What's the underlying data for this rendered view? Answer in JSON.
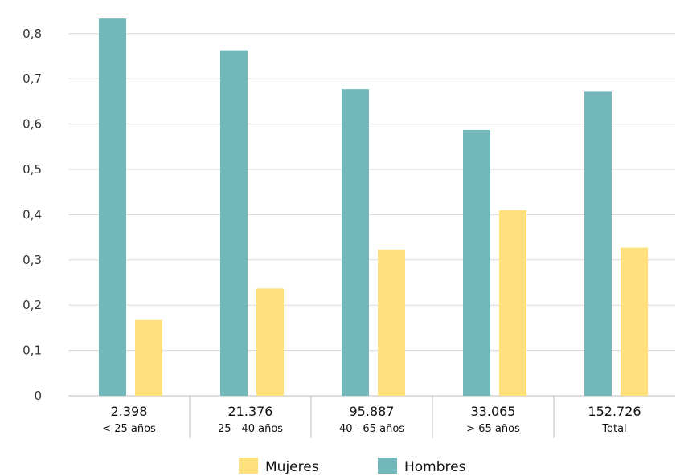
{
  "chart_data": {
    "type": "bar",
    "title": "",
    "xlabel": "",
    "ylabel": "",
    "ylim": [
      0,
      0.85
    ],
    "yticks": [
      "0",
      "0,1",
      "0,2",
      "0,3",
      "0,4",
      "0,5",
      "0,6",
      "0,7",
      "0,8"
    ],
    "ytick_values": [
      0,
      0.1,
      0.2,
      0.3,
      0.4,
      0.5,
      0.6,
      0.7,
      0.8
    ],
    "grid": true,
    "legend_position": "bottom",
    "categories": [
      {
        "count": "2.398",
        "label": "< 25 años"
      },
      {
        "count": "21.376",
        "label": "25 - 40 años"
      },
      {
        "count": "95.887",
        "label": "40 - 65 años"
      },
      {
        "count": "33.065",
        "label": "> 65 años"
      },
      {
        "count": "152.726",
        "label": "Total"
      }
    ],
    "series": [
      {
        "name": "Hombres",
        "color": "#72b8bb",
        "values": [
          0.833,
          0.763,
          0.677,
          0.587,
          0.673
        ]
      },
      {
        "name": "Mujeres",
        "color": "#ffe07d",
        "values": [
          0.167,
          0.237,
          0.323,
          0.41,
          0.327
        ]
      }
    ],
    "legend": [
      {
        "name": "Mujeres",
        "color": "#ffe07d"
      },
      {
        "name": "Hombres",
        "color": "#72b8bb"
      }
    ]
  }
}
